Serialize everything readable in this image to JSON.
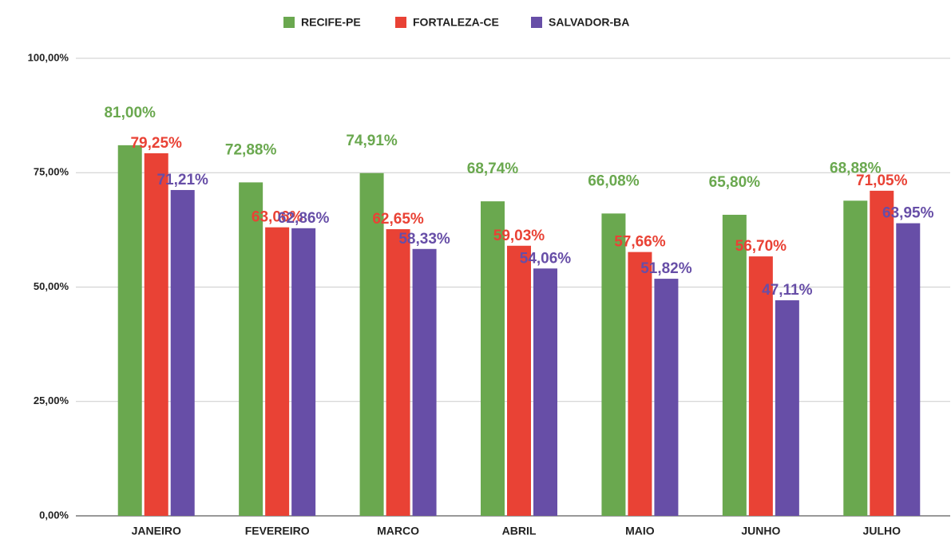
{
  "chart_data": {
    "type": "bar",
    "categories": [
      "JANEIRO",
      "FEVEREIRO",
      "MARCO",
      "ABRIL",
      "MAIO",
      "JUNHO",
      "JULHO"
    ],
    "series": [
      {
        "name": "RECIFE-PE",
        "color": "#6aa84f",
        "values": [
          81.0,
          72.88,
          74.91,
          68.74,
          66.08,
          65.8,
          68.88
        ],
        "value_labels": [
          "81,00%",
          "72,88%",
          "74,91%",
          "68,74%",
          "66,08%",
          "65,80%",
          "68,88%"
        ]
      },
      {
        "name": "FORTALEZA-CE",
        "color": "#e94235",
        "values": [
          79.25,
          63.06,
          62.65,
          59.03,
          57.66,
          56.7,
          71.05
        ],
        "value_labels": [
          "79,25%",
          "63,06%",
          "62,65%",
          "59,03%",
          "57,66%",
          "56,70%",
          "71,05%"
        ]
      },
      {
        "name": "SALVADOR-BA",
        "color": "#674ea7",
        "values": [
          71.21,
          62.86,
          58.33,
          54.06,
          51.82,
          47.11,
          63.95
        ],
        "value_labels": [
          "71,21%",
          "62,86%",
          "58,33%",
          "54,06%",
          "51,82%",
          "47,11%",
          "63,95%"
        ]
      }
    ],
    "ylim": [
      0,
      100
    ],
    "yticks": [
      {
        "value": 0,
        "label": "0,00%"
      },
      {
        "value": 25,
        "label": "25,00%"
      },
      {
        "value": 50,
        "label": "50,00%"
      },
      {
        "value": 75,
        "label": "75,00%"
      },
      {
        "value": 100,
        "label": "100,00%"
      }
    ],
    "grid": true,
    "legend": "top"
  }
}
